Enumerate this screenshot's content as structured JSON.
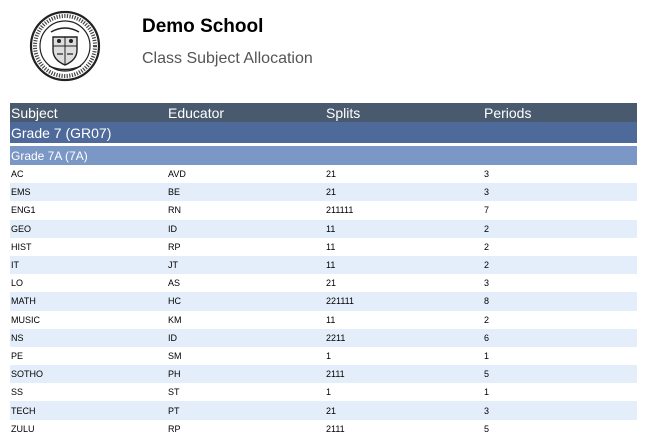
{
  "header": {
    "school_name": "Demo School",
    "report_title": "Class Subject Allocation",
    "logo_icon": "school-crest-icon"
  },
  "columns": {
    "subject": "Subject",
    "educator": "Educator",
    "splits": "Splits",
    "periods": "Periods"
  },
  "grade": {
    "label": "Grade 7 (GR07)"
  },
  "class": {
    "label": "Grade 7A (7A)"
  },
  "rows": [
    {
      "subject": "AC",
      "educator": "AVD",
      "splits": "21",
      "periods": "3"
    },
    {
      "subject": "EMS",
      "educator": "BE",
      "splits": "21",
      "periods": "3"
    },
    {
      "subject": "ENG1",
      "educator": "RN",
      "splits": "211111",
      "periods": "7"
    },
    {
      "subject": "GEO",
      "educator": "ID",
      "splits": "11",
      "periods": "2"
    },
    {
      "subject": "HIST",
      "educator": "RP",
      "splits": "11",
      "periods": "2"
    },
    {
      "subject": "IT",
      "educator": "JT",
      "splits": "11",
      "periods": "2"
    },
    {
      "subject": "LO",
      "educator": "AS",
      "splits": "21",
      "periods": "3"
    },
    {
      "subject": "MATH",
      "educator": "HC",
      "splits": "221111",
      "periods": "8"
    },
    {
      "subject": "MUSIC",
      "educator": "KM",
      "splits": "11",
      "periods": "2"
    },
    {
      "subject": "NS",
      "educator": "ID",
      "splits": "2211",
      "periods": "6"
    },
    {
      "subject": "PE",
      "educator": "SM",
      "splits": "1",
      "periods": "1"
    },
    {
      "subject": "SOTHO",
      "educator": "PH",
      "splits": "2111",
      "periods": "5"
    },
    {
      "subject": "SS",
      "educator": "ST",
      "splits": "1",
      "periods": "1"
    },
    {
      "subject": "TECH",
      "educator": "PT",
      "splits": "21",
      "periods": "3"
    },
    {
      "subject": "ZULU",
      "educator": "RP",
      "splits": "2111",
      "periods": "5"
    }
  ],
  "colors": {
    "header_band": "#4a5a6e",
    "grade_band": "#4e6a9a",
    "class_band": "#7a97c6",
    "alt_row": "#e4eefa"
  }
}
